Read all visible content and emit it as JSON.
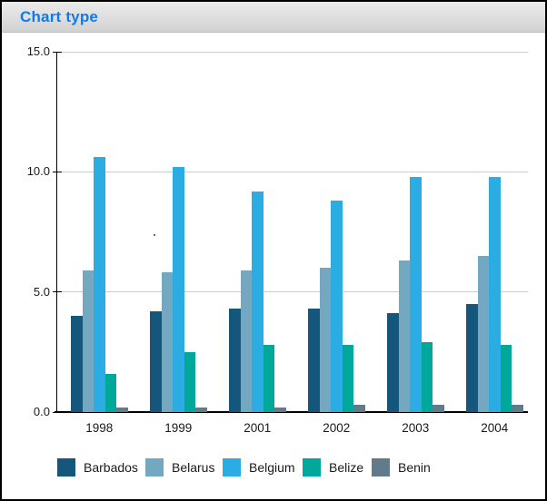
{
  "header": {
    "title": "Chart type",
    "title_color": "#0A7BF5"
  },
  "chart_data": {
    "type": "bar",
    "title": "Chart type",
    "categories": [
      "1998",
      "1999",
      "2001",
      "2002",
      "2003",
      "2004"
    ],
    "series": [
      {
        "name": "Barbados",
        "color": "#15567D",
        "values": [
          4.0,
          4.2,
          4.3,
          4.3,
          4.1,
          4.5
        ]
      },
      {
        "name": "Belarus",
        "color": "#74A8C1",
        "values": [
          5.9,
          5.8,
          5.9,
          6.0,
          6.3,
          6.5
        ]
      },
      {
        "name": "Belgium",
        "color": "#2BACE2",
        "values": [
          10.6,
          10.2,
          9.2,
          8.8,
          9.8,
          9.8
        ]
      },
      {
        "name": "Belize",
        "color": "#00A79B",
        "values": [
          1.6,
          2.5,
          2.8,
          2.8,
          2.9,
          2.8
        ]
      },
      {
        "name": "Benin",
        "color": "#617B8D",
        "values": [
          0.2,
          0.2,
          0.2,
          0.3,
          0.3,
          0.3
        ]
      }
    ],
    "xlabel": "",
    "ylabel": "",
    "ylim": [
      0,
      15
    ],
    "ytick_labels": [
      "0.0",
      "5.0",
      "10.0",
      "15.0"
    ],
    "grid": true,
    "grid_color": "#CCCCCC",
    "axis_color": "#000000",
    "legend_position": "bottom"
  }
}
